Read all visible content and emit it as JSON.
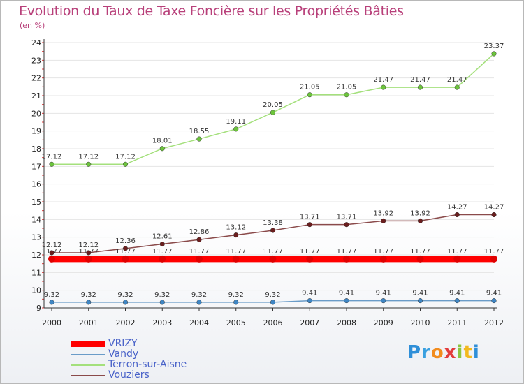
{
  "header": {
    "title": "Evolution du Taux de Taxe Foncière sur les Propriétés Bâties",
    "unit": "(en %)"
  },
  "logo": {
    "letters": [
      "P",
      "r",
      "o",
      "x",
      "i",
      "t",
      "i"
    ],
    "colors": [
      "#2f8fd8",
      "#3aa0e0",
      "#f28c1e",
      "#e23c3c",
      "#8bc53f",
      "#f2b91e",
      "#2f8fd8"
    ]
  },
  "chart_data": {
    "type": "line",
    "title": "Evolution du Taux de Taxe Foncière sur les Propriétés Bâties",
    "ylabel": "(en %)",
    "xlabel": "",
    "ylim": [
      9,
      24
    ],
    "x": [
      "2000",
      "2001",
      "2002",
      "2003",
      "2004",
      "2005",
      "2006",
      "2007",
      "2008",
      "2009",
      "2010",
      "2011",
      "2012"
    ],
    "y_ticks": [
      "9",
      "10",
      "11",
      "12",
      "13",
      "14",
      "15",
      "16",
      "17",
      "18",
      "19",
      "20",
      "21",
      "22",
      "23",
      "24"
    ],
    "legend_position": "bottom-left",
    "series": [
      {
        "name": "VRIZY",
        "color": "#ff0000",
        "marker": "#e00000",
        "values": [
          11.77,
          11.77,
          11.77,
          11.77,
          11.77,
          11.77,
          11.77,
          11.77,
          11.77,
          11.77,
          11.77,
          11.77,
          11.77
        ],
        "labels": [
          "11.77",
          "11.77",
          "11.77",
          "11.77",
          "11.77",
          "11.77",
          "11.77",
          "11.77",
          "11.77",
          "11.77",
          "11.77",
          "11.77",
          "11.77"
        ]
      },
      {
        "name": "Vandy",
        "color": "#6a9cc8",
        "marker": "#3f86c4",
        "values": [
          9.32,
          9.32,
          9.32,
          9.32,
          9.32,
          9.32,
          9.32,
          9.41,
          9.41,
          9.41,
          9.41,
          9.41,
          9.41
        ],
        "labels": [
          "9.32",
          "9.32",
          "9.32",
          "9.32",
          "9.32",
          "9.32",
          "9.32",
          "9.41",
          "9.41",
          "9.41",
          "9.41",
          "9.41",
          "9.41"
        ]
      },
      {
        "name": "Terron-sur-Aisne",
        "color": "#a4e07c",
        "marker": "#6cc43c",
        "values": [
          17.12,
          17.12,
          17.12,
          18.01,
          18.55,
          19.11,
          20.05,
          21.05,
          21.05,
          21.47,
          21.47,
          21.47,
          23.37
        ],
        "labels": [
          "17.12",
          "17.12",
          "17.12",
          "18.01",
          "18.55",
          "19.11",
          "20.05",
          "21.05",
          "21.05",
          "21.47",
          "21.47",
          "21.47",
          "23.37"
        ]
      },
      {
        "name": "Vouziers",
        "color": "#8a4a4a",
        "marker": "#6a1e1e",
        "values": [
          12.12,
          12.12,
          12.36,
          12.61,
          12.86,
          13.12,
          13.38,
          13.71,
          13.71,
          13.92,
          13.92,
          14.27,
          14.27
        ],
        "labels": [
          "12.12",
          "12.12",
          "12.36",
          "12.61",
          "12.86",
          "13.12",
          "13.38",
          "13.71",
          "13.71",
          "13.92",
          "13.92",
          "14.27",
          "14.27"
        ]
      }
    ]
  }
}
